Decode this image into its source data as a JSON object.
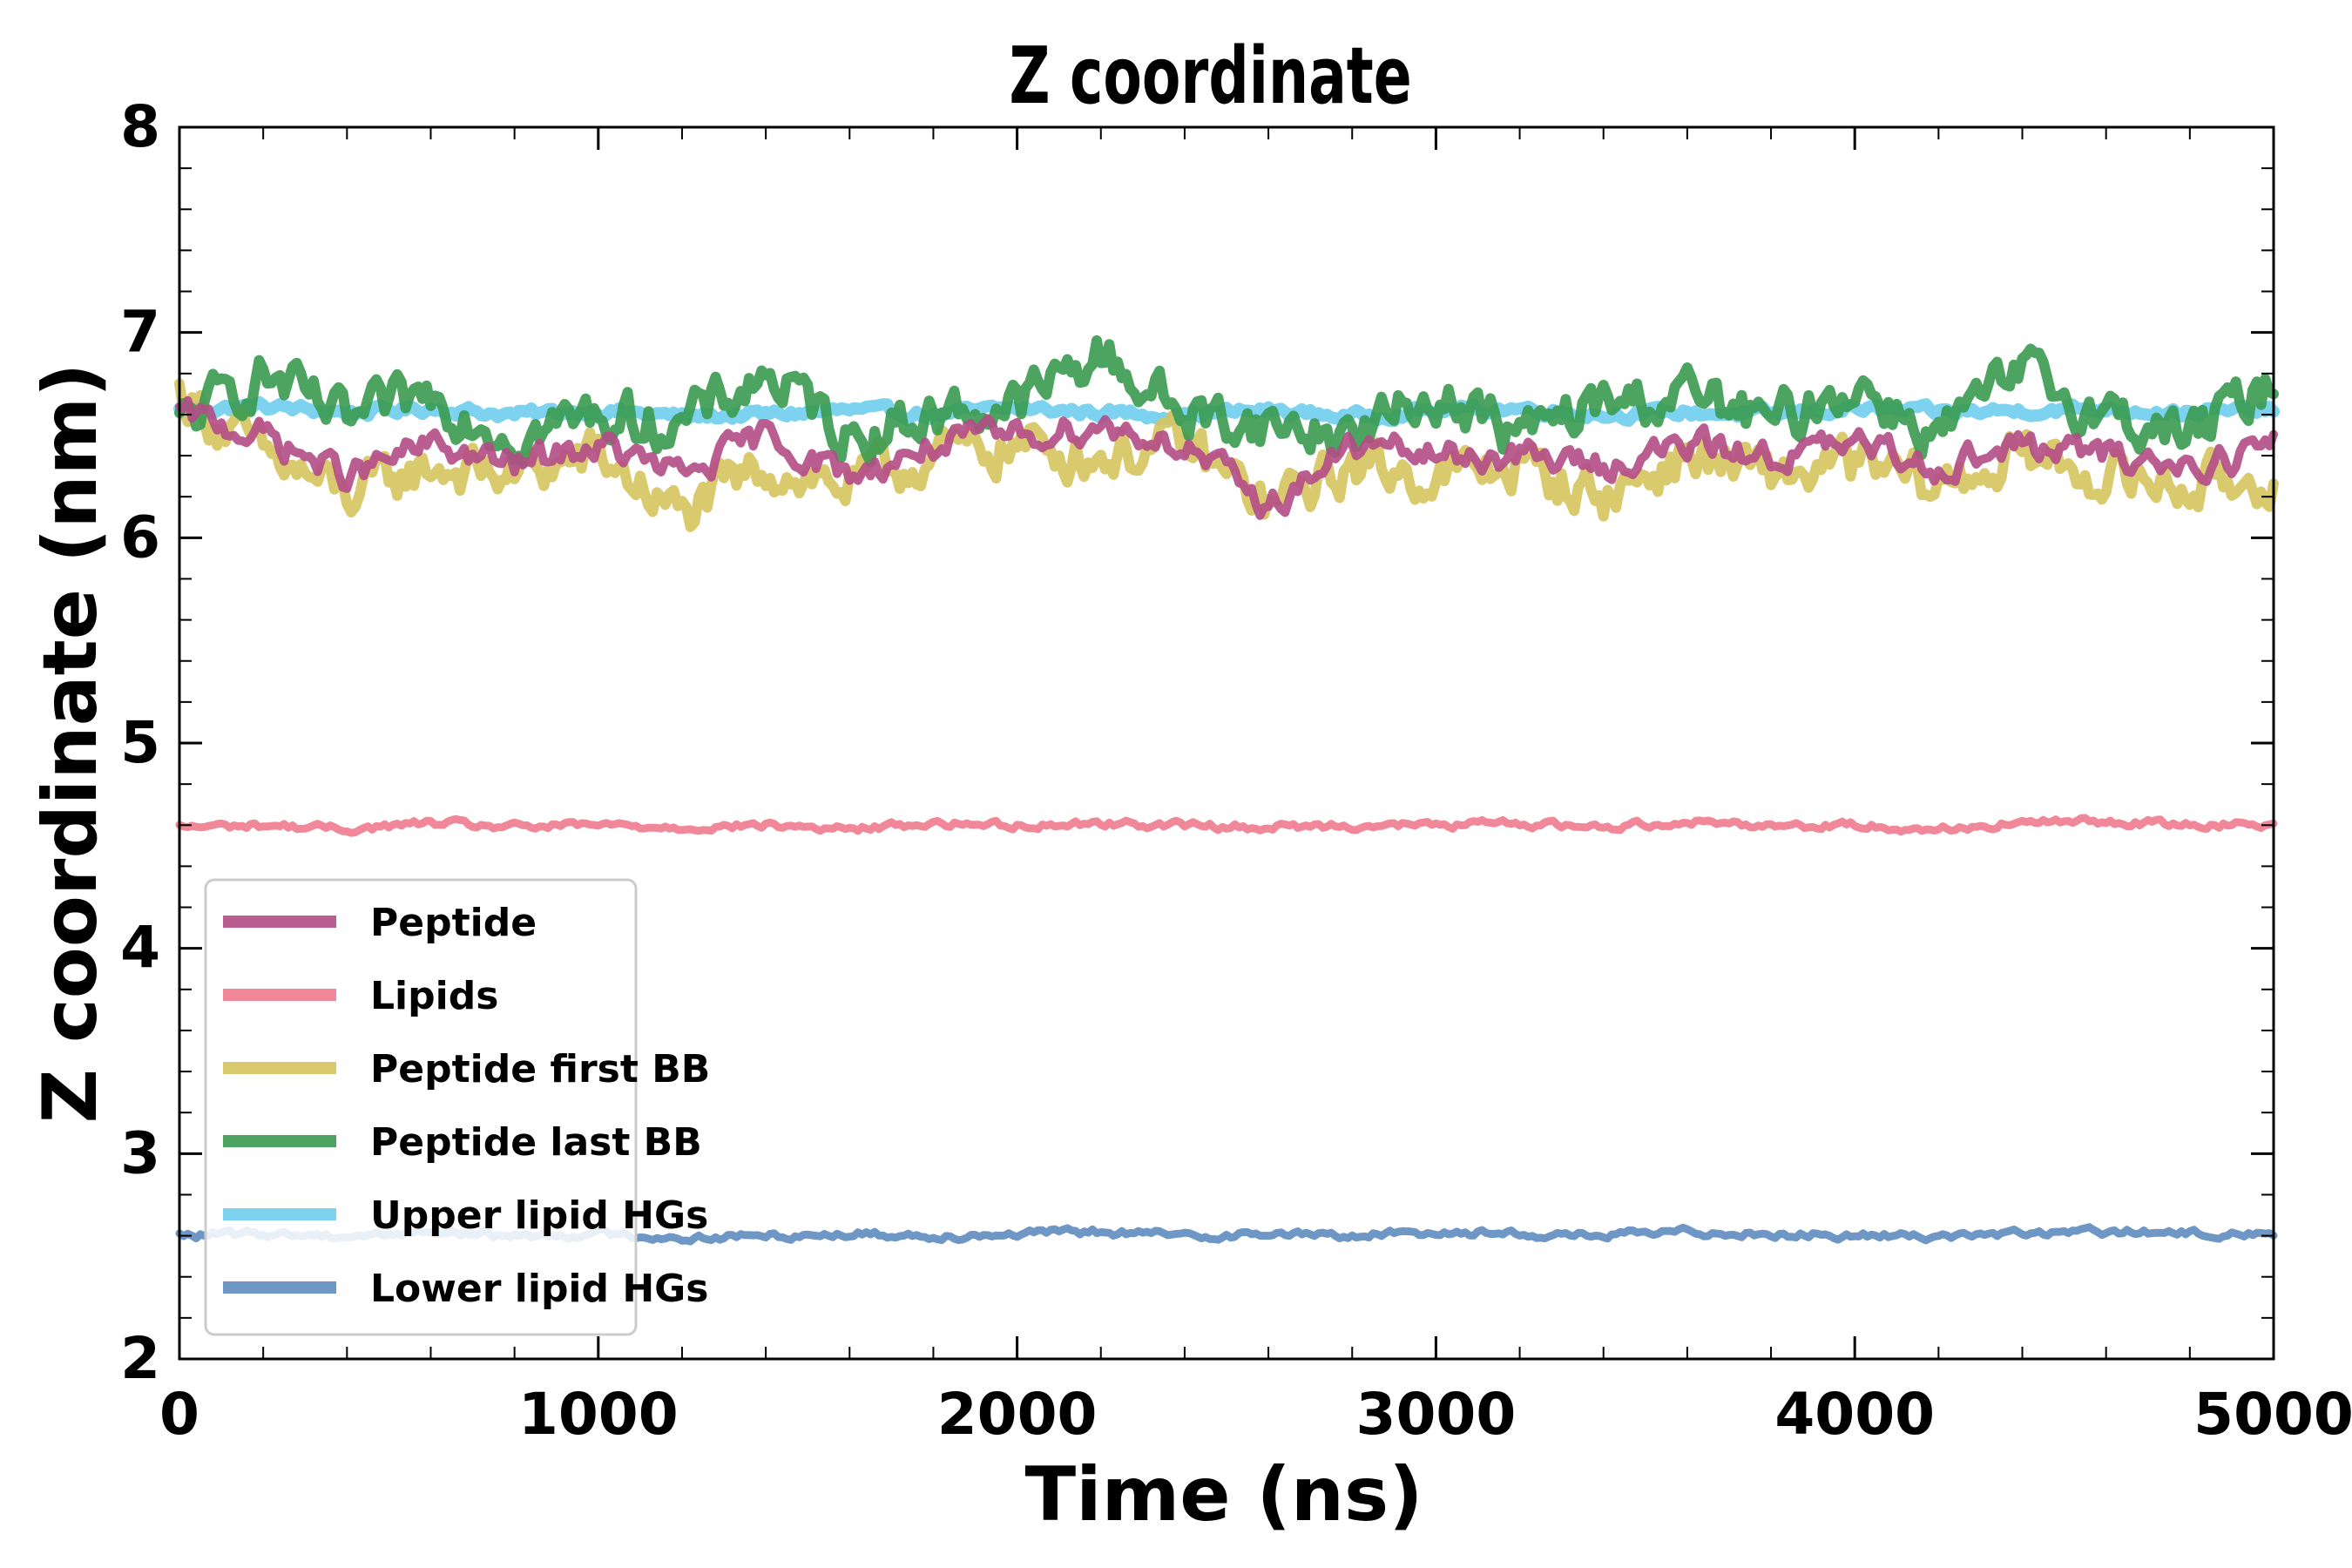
{
  "chart_data": {
    "type": "line",
    "title": "Z coordinate",
    "xlabel": "Time (ns)",
    "ylabel": "Z coordinate (nm)",
    "xlim": [
      0,
      5000
    ],
    "ylim": [
      2,
      8
    ],
    "xticks": [
      0,
      1000,
      2000,
      3000,
      4000,
      5000
    ],
    "yticks": [
      2,
      3,
      4,
      5,
      6,
      7,
      8
    ],
    "xtick_labels": [
      "0",
      "1000",
      "2000",
      "3000",
      "4000",
      "5000"
    ],
    "ytick_labels": [
      "2",
      "3",
      "4",
      "5",
      "6",
      "7",
      "8"
    ],
    "grid": false,
    "legend_position": "lower-left",
    "series": [
      {
        "name": "Upper lipid HGs",
        "color": "#6fcdee",
        "x": [
          0,
          200,
          400,
          600,
          800,
          1000,
          1200,
          1400,
          1600,
          1800,
          2000,
          2200,
          2400,
          2600,
          2800,
          3000,
          3200,
          3400,
          3600,
          3800,
          4000,
          4200,
          4400,
          4600,
          4800,
          5000
        ],
        "values": [
          6.62,
          6.64,
          6.61,
          6.63,
          6.6,
          6.62,
          6.59,
          6.6,
          6.62,
          6.6,
          6.63,
          6.61,
          6.6,
          6.62,
          6.59,
          6.62,
          6.63,
          6.6,
          6.61,
          6.6,
          6.63,
          6.61,
          6.62,
          6.63,
          6.61,
          6.62
        ]
      },
      {
        "name": "Peptide first BB",
        "color": "#d6c45e",
        "x": [
          0,
          200,
          400,
          600,
          800,
          1000,
          1200,
          1400,
          1600,
          1800,
          2000,
          2200,
          2400,
          2600,
          2800,
          3000,
          3200,
          3400,
          3600,
          3800,
          4000,
          4200,
          4400,
          4600,
          4800,
          5000
        ],
        "values": [
          6.7,
          6.4,
          6.2,
          6.35,
          6.3,
          6.4,
          6.1,
          6.35,
          6.25,
          6.4,
          6.45,
          6.4,
          6.45,
          6.15,
          6.35,
          6.3,
          6.35,
          6.2,
          6.4,
          6.3,
          6.35,
          6.25,
          6.4,
          6.3,
          6.25,
          6.3
        ]
      },
      {
        "name": "Peptide last BB",
        "color": "#3a9a50",
        "x": [
          0,
          200,
          400,
          600,
          800,
          1000,
          1200,
          1400,
          1600,
          1800,
          2000,
          2200,
          2400,
          2600,
          2800,
          3000,
          3200,
          3400,
          3600,
          3800,
          4000,
          4200,
          4400,
          4600,
          4800,
          5000
        ],
        "values": [
          6.55,
          6.8,
          6.55,
          6.7,
          6.5,
          6.6,
          6.55,
          6.8,
          6.5,
          6.6,
          6.65,
          6.9,
          6.6,
          6.55,
          6.5,
          6.7,
          6.5,
          6.65,
          6.7,
          6.55,
          6.75,
          6.5,
          6.8,
          6.6,
          6.5,
          6.75
        ]
      },
      {
        "name": "Peptide",
        "color": "#b34d86",
        "x": [
          0,
          200,
          400,
          600,
          800,
          1000,
          1200,
          1400,
          1600,
          1800,
          2000,
          2200,
          2400,
          2600,
          2800,
          3000,
          3200,
          3400,
          3600,
          3800,
          4000,
          4200,
          4400,
          4600,
          4800,
          5000
        ],
        "values": [
          6.6,
          6.5,
          6.3,
          6.45,
          6.35,
          6.45,
          6.3,
          6.5,
          6.3,
          6.45,
          6.5,
          6.55,
          6.45,
          6.15,
          6.45,
          6.4,
          6.4,
          6.35,
          6.45,
          6.4,
          6.45,
          6.35,
          6.45,
          6.4,
          6.35,
          6.45
        ]
      },
      {
        "name": "Lipids",
        "color": "#ef7b8e",
        "x": [
          0,
          200,
          400,
          600,
          800,
          1000,
          1200,
          1400,
          1600,
          1800,
          2000,
          2200,
          2400,
          2600,
          2800,
          3000,
          3200,
          3400,
          3600,
          3800,
          4000,
          4200,
          4400,
          4600,
          4800,
          5000
        ],
        "values": [
          4.59,
          4.6,
          4.58,
          4.61,
          4.59,
          4.6,
          4.59,
          4.6,
          4.58,
          4.61,
          4.6,
          4.61,
          4.6,
          4.59,
          4.6,
          4.6,
          4.61,
          4.59,
          4.62,
          4.6,
          4.6,
          4.58,
          4.61,
          4.62,
          4.6,
          4.61
        ]
      },
      {
        "name": "Lower lipid HGs",
        "color": "#5f8cbf",
        "x": [
          0,
          200,
          400,
          600,
          800,
          1000,
          1200,
          1400,
          1600,
          1800,
          2000,
          2200,
          2400,
          2600,
          2800,
          3000,
          3200,
          3400,
          3600,
          3800,
          4000,
          4200,
          4400,
          4600,
          4800,
          5000
        ],
        "values": [
          2.6,
          2.61,
          2.6,
          2.62,
          2.6,
          2.61,
          2.59,
          2.6,
          2.61,
          2.6,
          2.61,
          2.62,
          2.6,
          2.61,
          2.6,
          2.62,
          2.61,
          2.6,
          2.62,
          2.61,
          2.6,
          2.6,
          2.61,
          2.62,
          2.61,
          2.61
        ]
      }
    ],
    "legend_order": [
      "Peptide",
      "Lipids",
      "Peptide first BB",
      "Peptide last BB",
      "Upper lipid HGs",
      "Lower lipid HGs"
    ]
  }
}
